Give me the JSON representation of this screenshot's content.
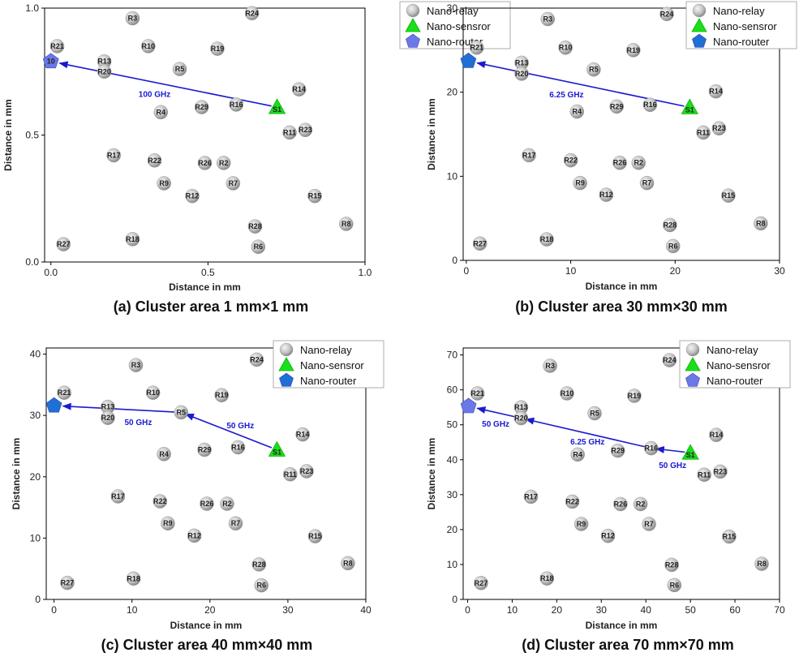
{
  "chart_data": [
    {
      "type": "scatter",
      "title": "(a) Cluster area 1 mm×1 mm",
      "xlabel": "Distance in mm",
      "ylabel": "Distance in mm",
      "xlim": [
        -0.02,
        1.0
      ],
      "ylim": [
        0,
        1.0
      ],
      "xticks": [
        {
          "v": 0,
          "t": "0.0"
        },
        {
          "v": 0.5,
          "t": "0.5"
        },
        {
          "v": 1.0,
          "t": "1.0"
        }
      ],
      "yticks": [
        {
          "v": 0,
          "t": "0.0"
        },
        {
          "v": 0.5,
          "t": "0.5"
        },
        {
          "v": 1.0,
          "t": "1.0"
        }
      ],
      "legend": [
        "Nano-relay",
        "Nano-sensror",
        "Nano-router"
      ],
      "router": {
        "label": "10",
        "x": 0.0,
        "y": 0.79
      },
      "sensor": {
        "label": "S1",
        "x": 0.72,
        "y": 0.61
      },
      "relays": [
        {
          "label": "R3",
          "x": 0.26,
          "y": 0.96
        },
        {
          "label": "R24",
          "x": 0.64,
          "y": 0.98
        },
        {
          "label": "R21",
          "x": 0.02,
          "y": 0.85
        },
        {
          "label": "R10",
          "x": 0.31,
          "y": 0.85
        },
        {
          "label": "R19",
          "x": 0.53,
          "y": 0.84
        },
        {
          "label": "R13",
          "x": 0.17,
          "y": 0.79
        },
        {
          "label": "R20",
          "x": 0.17,
          "y": 0.75
        },
        {
          "label": "R5",
          "x": 0.41,
          "y": 0.76
        },
        {
          "label": "R14",
          "x": 0.79,
          "y": 0.68
        },
        {
          "label": "R16",
          "x": 0.59,
          "y": 0.62
        },
        {
          "label": "R29",
          "x": 0.48,
          "y": 0.61
        },
        {
          "label": "R4",
          "x": 0.35,
          "y": 0.59
        },
        {
          "label": "R11",
          "x": 0.76,
          "y": 0.51
        },
        {
          "label": "R23",
          "x": 0.81,
          "y": 0.52
        },
        {
          "label": "R17",
          "x": 0.2,
          "y": 0.42
        },
        {
          "label": "R22",
          "x": 0.33,
          "y": 0.4
        },
        {
          "label": "R26",
          "x": 0.49,
          "y": 0.39
        },
        {
          "label": "R2",
          "x": 0.55,
          "y": 0.39
        },
        {
          "label": "R9",
          "x": 0.36,
          "y": 0.31
        },
        {
          "label": "R7",
          "x": 0.58,
          "y": 0.31
        },
        {
          "label": "R12",
          "x": 0.45,
          "y": 0.26
        },
        {
          "label": "R15",
          "x": 0.84,
          "y": 0.26
        },
        {
          "label": "R28",
          "x": 0.65,
          "y": 0.14
        },
        {
          "label": "R8",
          "x": 0.94,
          "y": 0.15
        },
        {
          "label": "R27",
          "x": 0.04,
          "y": 0.07
        },
        {
          "label": "R18",
          "x": 0.26,
          "y": 0.09
        },
        {
          "label": "R6",
          "x": 0.66,
          "y": 0.06
        }
      ],
      "path": [
        [
          0.72,
          0.61
        ],
        [
          0.0,
          0.79
        ]
      ],
      "link_labels": [
        {
          "text": "100 GHz",
          "x": 0.33,
          "y": 0.66
        }
      ]
    },
    {
      "type": "scatter",
      "title": "(b) Cluster area 30 mm×30 mm",
      "xlabel": "Distance in mm",
      "ylabel": "Distance in mm",
      "xlim": [
        -0.3,
        30
      ],
      "ylim": [
        0,
        30
      ],
      "xticks": [
        {
          "v": 0,
          "t": "0"
        },
        {
          "v": 10,
          "t": "10"
        },
        {
          "v": 20,
          "t": "20"
        },
        {
          "v": 30,
          "t": "30"
        }
      ],
      "yticks": [
        {
          "v": 0,
          "t": "0"
        },
        {
          "v": 10,
          "t": "10"
        },
        {
          "v": 20,
          "t": "20"
        },
        {
          "v": 30,
          "t": "30"
        }
      ],
      "legend": [
        "Nano-relay",
        "Nano-sensror",
        "Nano-router"
      ],
      "router": {
        "label": "",
        "x": 0.2,
        "y": 23.7
      },
      "sensor": {
        "label": "S1",
        "x": 21.4,
        "y": 18.2
      },
      "relays": [
        {
          "label": "R3",
          "x": 7.8,
          "y": 28.7
        },
        {
          "label": "R24",
          "x": 19.2,
          "y": 29.3
        },
        {
          "label": "R21",
          "x": 1.0,
          "y": 25.3
        },
        {
          "label": "R10",
          "x": 9.5,
          "y": 25.3
        },
        {
          "label": "R19",
          "x": 16.0,
          "y": 25.0
        },
        {
          "label": "R13",
          "x": 5.3,
          "y": 23.5
        },
        {
          "label": "R20",
          "x": 5.3,
          "y": 22.2
        },
        {
          "label": "R5",
          "x": 12.2,
          "y": 22.7
        },
        {
          "label": "R14",
          "x": 23.9,
          "y": 20.1
        },
        {
          "label": "R16",
          "x": 17.6,
          "y": 18.5
        },
        {
          "label": "R29",
          "x": 14.4,
          "y": 18.3
        },
        {
          "label": "R4",
          "x": 10.6,
          "y": 17.7
        },
        {
          "label": "R11",
          "x": 22.7,
          "y": 15.2
        },
        {
          "label": "R23",
          "x": 24.2,
          "y": 15.7
        },
        {
          "label": "R17",
          "x": 6.0,
          "y": 12.5
        },
        {
          "label": "R22",
          "x": 10.0,
          "y": 11.9
        },
        {
          "label": "R26",
          "x": 14.7,
          "y": 11.6
        },
        {
          "label": "R2",
          "x": 16.5,
          "y": 11.6
        },
        {
          "label": "R9",
          "x": 10.9,
          "y": 9.2
        },
        {
          "label": "R7",
          "x": 17.3,
          "y": 9.2
        },
        {
          "label": "R12",
          "x": 13.4,
          "y": 7.8
        },
        {
          "label": "R15",
          "x": 25.1,
          "y": 7.7
        },
        {
          "label": "R28",
          "x": 19.5,
          "y": 4.2
        },
        {
          "label": "R8",
          "x": 28.2,
          "y": 4.4
        },
        {
          "label": "R27",
          "x": 1.3,
          "y": 2.0
        },
        {
          "label": "R18",
          "x": 7.7,
          "y": 2.5
        },
        {
          "label": "R6",
          "x": 19.8,
          "y": 1.7
        }
      ],
      "path": [
        [
          21.4,
          18.2
        ],
        [
          0.2,
          23.7
        ]
      ],
      "link_labels": [
        {
          "text": "6.25 GHz",
          "x": 9.6,
          "y": 19.7
        }
      ]
    },
    {
      "type": "scatter",
      "title": "(c) Cluster area 40 mm×40 mm",
      "xlabel": "Distance in mm",
      "ylabel": "Distance in mm",
      "xlim": [
        -1,
        40
      ],
      "ylim": [
        0,
        41
      ],
      "xticks": [
        {
          "v": 0,
          "t": "0"
        },
        {
          "v": 10,
          "t": "10"
        },
        {
          "v": 20,
          "t": "20"
        },
        {
          "v": 30,
          "t": "30"
        },
        {
          "v": 40,
          "t": "40"
        }
      ],
      "yticks": [
        {
          "v": 0,
          "t": "0"
        },
        {
          "v": 10,
          "t": "10"
        },
        {
          "v": 20,
          "t": "20"
        },
        {
          "v": 30,
          "t": "30"
        },
        {
          "v": 40,
          "t": "40"
        }
      ],
      "legend": [
        "Nano-relay",
        "Nano-sensror",
        "Nano-router"
      ],
      "router": {
        "label": "",
        "x": 0.0,
        "y": 31.6
      },
      "sensor": {
        "label": "S1",
        "x": 28.6,
        "y": 24.4
      },
      "relays": [
        {
          "label": "R3",
          "x": 10.5,
          "y": 38.2
        },
        {
          "label": "R24",
          "x": 26.0,
          "y": 39.1
        },
        {
          "label": "R21",
          "x": 1.3,
          "y": 33.7
        },
        {
          "label": "R10",
          "x": 12.7,
          "y": 33.7
        },
        {
          "label": "R19",
          "x": 21.5,
          "y": 33.3
        },
        {
          "label": "R13",
          "x": 6.9,
          "y": 31.4
        },
        {
          "label": "R20",
          "x": 6.9,
          "y": 29.6
        },
        {
          "label": "R5",
          "x": 16.3,
          "y": 30.5
        },
        {
          "label": "R14",
          "x": 31.9,
          "y": 26.9
        },
        {
          "label": "R16",
          "x": 23.6,
          "y": 24.8
        },
        {
          "label": "R29",
          "x": 19.3,
          "y": 24.4
        },
        {
          "label": "R4",
          "x": 14.1,
          "y": 23.7
        },
        {
          "label": "R11",
          "x": 30.3,
          "y": 20.4
        },
        {
          "label": "R23",
          "x": 32.4,
          "y": 20.9
        },
        {
          "label": "R17",
          "x": 8.2,
          "y": 16.8
        },
        {
          "label": "R22",
          "x": 13.6,
          "y": 16.0
        },
        {
          "label": "R26",
          "x": 19.6,
          "y": 15.6
        },
        {
          "label": "R2",
          "x": 22.2,
          "y": 15.6
        },
        {
          "label": "R9",
          "x": 14.6,
          "y": 12.4
        },
        {
          "label": "R7",
          "x": 23.3,
          "y": 12.4
        },
        {
          "label": "R12",
          "x": 18.0,
          "y": 10.4
        },
        {
          "label": "R15",
          "x": 33.5,
          "y": 10.3
        },
        {
          "label": "R28",
          "x": 26.3,
          "y": 5.7
        },
        {
          "label": "R8",
          "x": 37.7,
          "y": 5.9
        },
        {
          "label": "R27",
          "x": 1.7,
          "y": 2.7
        },
        {
          "label": "R18",
          "x": 10.2,
          "y": 3.4
        },
        {
          "label": "R6",
          "x": 26.6,
          "y": 2.3
        }
      ],
      "path": [
        [
          28.6,
          24.4
        ],
        [
          16.3,
          30.5
        ],
        [
          0.0,
          31.6
        ]
      ],
      "link_labels": [
        {
          "text": "50 GHz",
          "x": 10.8,
          "y": 28.8
        },
        {
          "text": "50 GHz",
          "x": 23.9,
          "y": 28.3
        }
      ]
    },
    {
      "type": "scatter",
      "title": "(d) Cluster area 70 mm×70 mm",
      "xlabel": "Distance in mm",
      "ylabel": "Distance in mm",
      "xlim": [
        -1,
        70
      ],
      "ylim": [
        0,
        72
      ],
      "xticks": [
        {
          "v": 0,
          "t": "0"
        },
        {
          "v": 10,
          "t": "10"
        },
        {
          "v": 20,
          "t": "20"
        },
        {
          "v": 30,
          "t": "30"
        },
        {
          "v": 40,
          "t": "40"
        },
        {
          "v": 50,
          "t": "50"
        },
        {
          "v": 60,
          "t": "60"
        },
        {
          "v": 70,
          "t": "70"
        }
      ],
      "yticks": [
        {
          "v": 0,
          "t": "0"
        },
        {
          "v": 10,
          "t": "10"
        },
        {
          "v": 20,
          "t": "20"
        },
        {
          "v": 30,
          "t": "30"
        },
        {
          "v": 40,
          "t": "40"
        },
        {
          "v": 50,
          "t": "50"
        },
        {
          "v": 60,
          "t": "60"
        },
        {
          "v": 70,
          "t": "70"
        }
      ],
      "legend": [
        "Nano-relay",
        "Nano-sensror",
        "Nano-router"
      ],
      "router": {
        "label": "",
        "x": 0.2,
        "y": 55.3
      },
      "sensor": {
        "label": "S1",
        "x": 50.0,
        "y": 42.0
      },
      "relays": [
        {
          "label": "R3",
          "x": 18.5,
          "y": 66.9
        },
        {
          "label": "R24",
          "x": 45.3,
          "y": 68.5
        },
        {
          "label": "R21",
          "x": 2.2,
          "y": 59.0
        },
        {
          "label": "R10",
          "x": 22.3,
          "y": 59.0
        },
        {
          "label": "R19",
          "x": 37.4,
          "y": 58.3
        },
        {
          "label": "R13",
          "x": 12.0,
          "y": 55.0
        },
        {
          "label": "R20",
          "x": 12.0,
          "y": 51.9
        },
        {
          "label": "R5",
          "x": 28.5,
          "y": 53.3
        },
        {
          "label": "R14",
          "x": 55.8,
          "y": 47.1
        },
        {
          "label": "R16",
          "x": 41.2,
          "y": 43.3
        },
        {
          "label": "R29",
          "x": 33.7,
          "y": 42.6
        },
        {
          "label": "R4",
          "x": 24.7,
          "y": 41.5
        },
        {
          "label": "R11",
          "x": 53.1,
          "y": 35.7
        },
        {
          "label": "R23",
          "x": 56.7,
          "y": 36.6
        },
        {
          "label": "R17",
          "x": 14.2,
          "y": 29.4
        },
        {
          "label": "R22",
          "x": 23.5,
          "y": 28.0
        },
        {
          "label": "R26",
          "x": 34.3,
          "y": 27.3
        },
        {
          "label": "R2",
          "x": 38.8,
          "y": 27.3
        },
        {
          "label": "R9",
          "x": 25.5,
          "y": 21.6
        },
        {
          "label": "R7",
          "x": 40.7,
          "y": 21.6
        },
        {
          "label": "R12",
          "x": 31.5,
          "y": 18.2
        },
        {
          "label": "R15",
          "x": 58.7,
          "y": 18.0
        },
        {
          "label": "R28",
          "x": 45.8,
          "y": 9.9
        },
        {
          "label": "R8",
          "x": 66.0,
          "y": 10.2
        },
        {
          "label": "R27",
          "x": 3.0,
          "y": 4.7
        },
        {
          "label": "R18",
          "x": 17.8,
          "y": 6.0
        },
        {
          "label": "R6",
          "x": 46.4,
          "y": 4.1
        }
      ],
      "path": [
        [
          50.0,
          42.0
        ],
        [
          41.2,
          43.3
        ],
        [
          12.0,
          51.9
        ],
        [
          0.2,
          55.3
        ]
      ],
      "link_labels": [
        {
          "text": "50 GHz",
          "x": 6.3,
          "y": 50.2
        },
        {
          "text": "6.25 GHz",
          "x": 26.9,
          "y": 45.1
        },
        {
          "text": "50 GHz",
          "x": 46.0,
          "y": 38.3
        }
      ]
    }
  ]
}
